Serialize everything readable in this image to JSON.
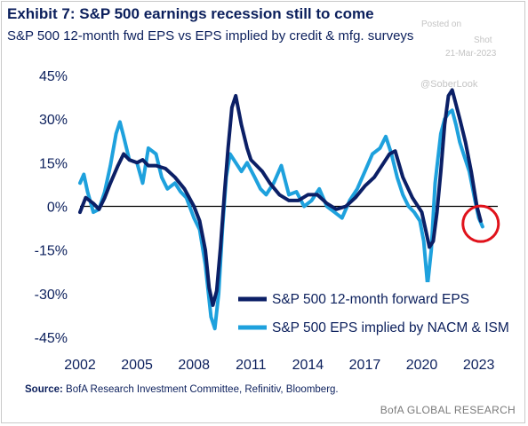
{
  "title": "Exhibit 7: S&P 500 earnings recession still to come",
  "subtitle": "S&P 500 12-month fwd EPS vs EPS implied by credit & mfg. surveys",
  "watermark": {
    "posted": "Posted on",
    "shot": "Shot",
    "date": "21-Mar-2023",
    "handle": "@SoberLook"
  },
  "source": {
    "label": "Source:",
    "text": "BofA Research Investment Committee, Refinitiv, Bloomberg."
  },
  "brand": "BofA GLOBAL RESEARCH",
  "colors": {
    "forward_eps": "#0b1f66",
    "implied_eps": "#1ea1dd",
    "highlight_circle": "#e0121b",
    "text": "#0b1f5c"
  },
  "chart_data": {
    "type": "line",
    "title": "",
    "xlabel": "",
    "ylabel": "",
    "xlim": [
      2002,
      2024
    ],
    "ylim": [
      -45,
      45
    ],
    "x_ticks": [
      "2002",
      "2005",
      "2008",
      "2011",
      "2014",
      "2017",
      "2020",
      "2023"
    ],
    "y_ticks": [
      "45%",
      "30%",
      "15%",
      "0%",
      "-15%",
      "-30%",
      "-45%"
    ],
    "zero_line": true,
    "grid": false,
    "legend_position": "bottom-right",
    "series": [
      {
        "name": "S&P 500 12-month forward EPS",
        "x": [
          2002.0,
          2002.3,
          2002.7,
          2003.0,
          2003.3,
          2003.6,
          2004.0,
          2004.3,
          2004.6,
          2005.0,
          2005.3,
          2005.6,
          2006.0,
          2006.5,
          2007.0,
          2007.5,
          2008.0,
          2008.3,
          2008.6,
          2008.8,
          2009.0,
          2009.2,
          2009.4,
          2009.6,
          2009.8,
          2010.0,
          2010.2,
          2010.5,
          2010.8,
          2011.0,
          2011.3,
          2011.6,
          2012.0,
          2012.5,
          2013.0,
          2013.5,
          2014.0,
          2014.5,
          2015.0,
          2015.5,
          2016.0,
          2016.5,
          2017.0,
          2017.5,
          2018.0,
          2018.3,
          2018.6,
          2019.0,
          2019.5,
          2020.0,
          2020.2,
          2020.4,
          2020.6,
          2020.8,
          2021.0,
          2021.2,
          2021.4,
          2021.6,
          2021.8,
          2022.0,
          2022.3,
          2022.6,
          2022.9,
          2023.1
        ],
        "values": [
          -2,
          3,
          1,
          -1,
          3,
          8,
          14,
          18,
          16,
          15,
          16,
          14,
          14,
          13,
          10,
          6,
          0,
          -5,
          -15,
          -28,
          -34,
          -29,
          -14,
          4,
          20,
          34,
          38,
          28,
          20,
          16,
          14,
          12,
          8,
          4,
          2,
          2,
          4,
          4,
          1,
          -1,
          0,
          3,
          7,
          10,
          15,
          18,
          19,
          10,
          3,
          -2,
          -8,
          -14,
          -12,
          -2,
          12,
          28,
          38,
          40,
          35,
          30,
          22,
          12,
          0,
          -5
        ]
      },
      {
        "name": "S&P 500 EPS implied by NACM & ISM",
        "x": [
          2002.0,
          2002.2,
          2002.4,
          2002.7,
          2003.0,
          2003.3,
          2003.6,
          2003.9,
          2004.1,
          2004.3,
          2004.6,
          2005.0,
          2005.3,
          2005.6,
          2006.0,
          2006.3,
          2006.6,
          2007.0,
          2007.3,
          2007.6,
          2008.0,
          2008.3,
          2008.6,
          2008.9,
          2009.1,
          2009.3,
          2009.5,
          2009.7,
          2009.9,
          2010.2,
          2010.5,
          2010.8,
          2011.2,
          2011.5,
          2011.8,
          2012.2,
          2012.6,
          2013.0,
          2013.4,
          2013.8,
          2014.2,
          2014.6,
          2015.0,
          2015.4,
          2015.8,
          2016.2,
          2016.6,
          2017.0,
          2017.4,
          2017.8,
          2018.1,
          2018.4,
          2018.7,
          2019.0,
          2019.3,
          2019.6,
          2019.9,
          2020.1,
          2020.3,
          2020.5,
          2020.7,
          2021.0,
          2021.2,
          2021.4,
          2021.6,
          2021.8,
          2022.0,
          2022.2,
          2022.5,
          2022.8,
          2023.0,
          2023.2
        ],
        "values": [
          8,
          11,
          5,
          -2,
          -1,
          5,
          14,
          25,
          29,
          24,
          16,
          15,
          8,
          20,
          18,
          10,
          6,
          8,
          5,
          3,
          -4,
          -8,
          -20,
          -38,
          -42,
          -30,
          -8,
          10,
          18,
          15,
          12,
          15,
          10,
          6,
          4,
          8,
          14,
          4,
          5,
          0,
          2,
          6,
          0,
          -2,
          -4,
          2,
          6,
          12,
          18,
          20,
          24,
          18,
          10,
          4,
          0,
          -2,
          -5,
          -12,
          -27,
          -15,
          8,
          25,
          30,
          32,
          33,
          28,
          22,
          18,
          12,
          2,
          -4,
          -7
        ]
      }
    ],
    "highlight": {
      "x": 2023.1,
      "y": -6,
      "shape": "circle"
    }
  }
}
